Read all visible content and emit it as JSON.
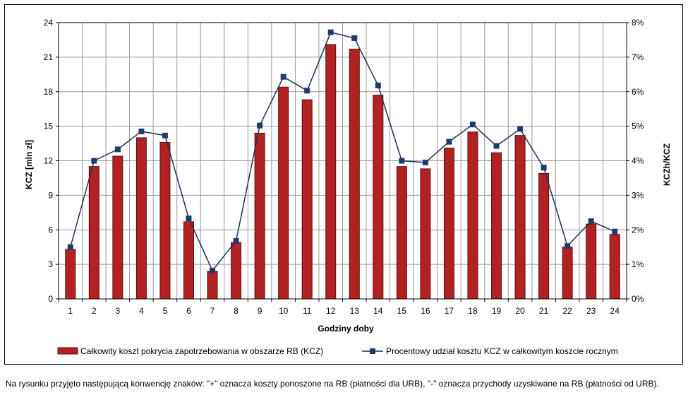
{
  "colors": {
    "bar_fill": "#b22222",
    "bar_stroke": "#5a0e0e",
    "line": "#1f2f55",
    "marker": "#1f3a6e",
    "grid": "#999999"
  },
  "chart_data": {
    "type": "bar",
    "categories": [
      "1",
      "2",
      "3",
      "4",
      "5",
      "6",
      "7",
      "8",
      "9",
      "10",
      "11",
      "12",
      "13",
      "14",
      "15",
      "16",
      "17",
      "18",
      "19",
      "20",
      "21",
      "22",
      "23",
      "24"
    ],
    "series": [
      {
        "name": "Całkowity koszt pokrycia zapotrzebowania w obszarze RB (KCZ)",
        "type": "bar",
        "axis": "left",
        "values": [
          4.3,
          11.5,
          12.4,
          14.0,
          13.6,
          6.7,
          2.4,
          4.9,
          14.4,
          18.4,
          17.3,
          22.1,
          21.7,
          17.7,
          11.5,
          11.3,
          13.1,
          14.5,
          12.7,
          14.2,
          10.9,
          4.5,
          6.5,
          5.6
        ]
      },
      {
        "name": "Procentowy udział kosztu KCZ w całkowitym koszcie rocznym",
        "type": "line",
        "axis": "right",
        "values": [
          1.5,
          4.0,
          4.33,
          4.85,
          4.73,
          2.33,
          0.82,
          1.68,
          5.02,
          6.43,
          6.03,
          7.72,
          7.55,
          6.18,
          4.0,
          3.95,
          4.55,
          5.05,
          4.43,
          4.92,
          3.8,
          1.53,
          2.25,
          1.95
        ]
      }
    ],
    "ylim": [
      0,
      24
    ],
    "y_ticks": [
      "0",
      "3",
      "6",
      "9",
      "12",
      "15",
      "18",
      "21",
      "24"
    ],
    "y2lim": [
      0,
      8
    ],
    "y2_ticks": [
      "0%",
      "1%",
      "2%",
      "3%",
      "4%",
      "5%",
      "6%",
      "7%",
      "8%"
    ],
    "xlabel": "Godziny doby",
    "ylabel": "KCZ [mln zł]",
    "y2label": "KCZh/KCZ",
    "legend_position": "bottom",
    "grid": true
  },
  "footnote": "Na rysunku przyjęto następującą konwencję znaków: \"+\" oznacza koszty ponoszone na RB (płatności dla URB), \"-\" oznacza przychody uzyskiwane na RB (płatności od URB)."
}
